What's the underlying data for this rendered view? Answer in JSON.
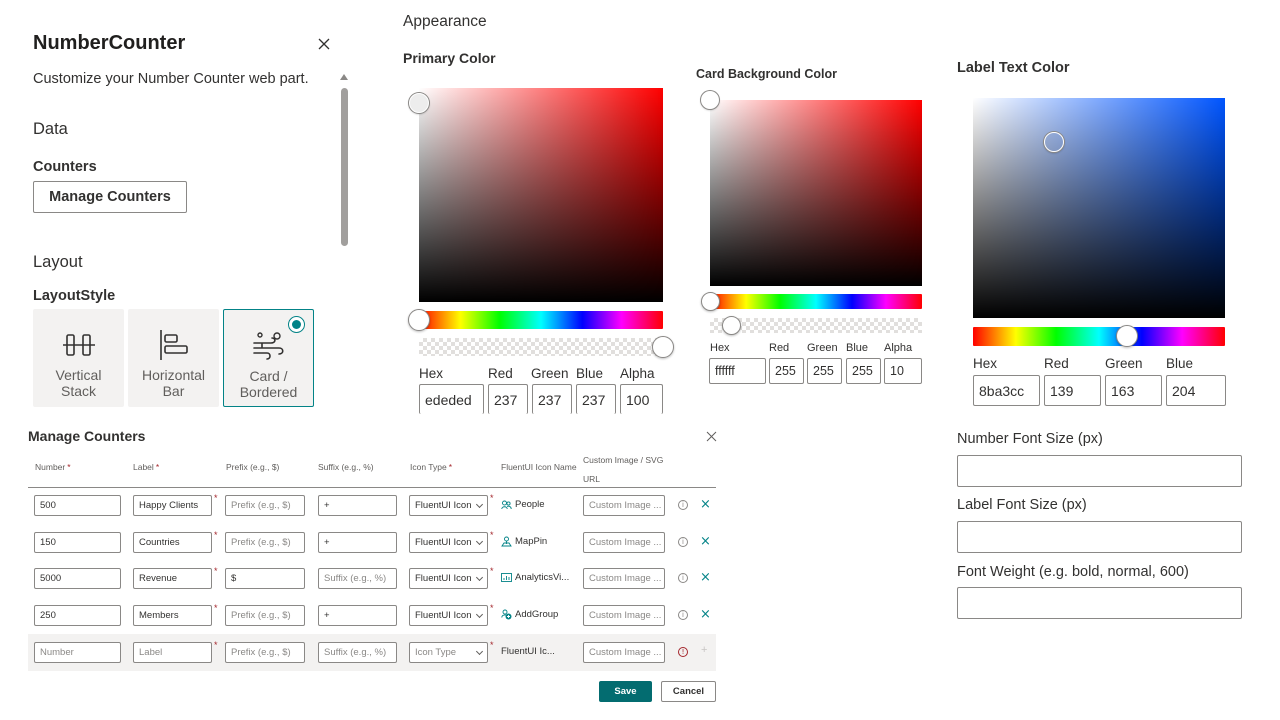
{
  "pane": {
    "title": "NumberCounter",
    "description": "Customize your Number Counter web part.",
    "data_group": "Data",
    "counters_label": "Counters",
    "manage_button": "Manage Counters",
    "layout_group": "Layout",
    "layout_style_label": "LayoutStyle",
    "layout_options": [
      {
        "line1": "Vertical",
        "line2": "Stack",
        "icon": "vertical-stack-icon",
        "selected": false
      },
      {
        "line1": "Horizontal",
        "line2": "Bar",
        "icon": "horizontal-bar-icon",
        "selected": false
      },
      {
        "line1": "Card /",
        "line2": "Bordered",
        "icon": "card-bordered-icon",
        "selected": true
      }
    ]
  },
  "appearance": {
    "heading": "Appearance",
    "primary": {
      "title": "Primary Color",
      "hue": "#ff0000",
      "labels": {
        "hex": "Hex",
        "red": "Red",
        "green": "Green",
        "blue": "Blue",
        "alpha": "Alpha"
      },
      "values": {
        "hex": "ededed",
        "red": "237",
        "green": "237",
        "blue": "237",
        "alpha": "100"
      }
    },
    "card_bg": {
      "title": "Card Background Color",
      "hue": "#ff0000",
      "labels": {
        "hex": "Hex",
        "red": "Red",
        "green": "Green",
        "blue": "Blue",
        "alpha": "Alpha"
      },
      "values": {
        "hex": "ffffff",
        "red": "255",
        "green": "255",
        "blue": "255",
        "alpha": "10"
      }
    },
    "label_text": {
      "title": "Label Text Color",
      "hue": "#0055ff",
      "labels": {
        "hex": "Hex",
        "red": "Red",
        "green": "Green",
        "blue": "Blue"
      },
      "values": {
        "hex": "8ba3cc",
        "red": "139",
        "green": "163",
        "blue": "204"
      }
    }
  },
  "fields": {
    "number_font_size": {
      "label": "Number Font Size (px)",
      "value": ""
    },
    "label_font_size": {
      "label": "Label Font Size (px)",
      "value": ""
    },
    "font_weight": {
      "label": "Font Weight (e.g. bold, normal, 600)",
      "value": ""
    }
  },
  "dialog": {
    "title": "Manage Counters",
    "columns": {
      "number": "Number",
      "label": "Label",
      "prefix": "Prefix (e.g., $)",
      "suffix": "Suffix (e.g., %)",
      "icon_type": "Icon Type",
      "icon_name": "FluentUI Icon Name",
      "custom_image_1": "Custom Image / SVG",
      "custom_image_2": "URL"
    },
    "rows": [
      {
        "number": "500",
        "label": "Happy Clients",
        "prefix": "Prefix (e.g., $)",
        "prefix_ph": true,
        "suffix": "+",
        "suffix_ph": false,
        "icon_type": "FluentUI Icon",
        "icon_glyph": "people-icon",
        "icon_name": "People",
        "custom": "Custom Image ..."
      },
      {
        "number": "150",
        "label": "Countries",
        "prefix": "Prefix (e.g., $)",
        "prefix_ph": true,
        "suffix": "+",
        "suffix_ph": false,
        "icon_type": "FluentUI Icon",
        "icon_glyph": "map-pin-icon",
        "icon_name": "MapPin",
        "custom": "Custom Image ..."
      },
      {
        "number": "5000",
        "label": "Revenue",
        "prefix": "$",
        "prefix_ph": false,
        "suffix": "Suffix (e.g., %)",
        "suffix_ph": true,
        "icon_type": "FluentUI Icon",
        "icon_glyph": "analytics-view-icon",
        "icon_name": "AnalyticsVi...",
        "custom": "Custom Image ..."
      },
      {
        "number": "250",
        "label": "Members",
        "prefix": "Prefix (e.g., $)",
        "prefix_ph": true,
        "suffix": "+",
        "suffix_ph": false,
        "icon_type": "FluentUI Icon",
        "icon_glyph": "add-group-icon",
        "icon_name": "AddGroup",
        "custom": "Custom Image ..."
      }
    ],
    "new_row": {
      "number": "Number",
      "label": "Label",
      "prefix": "Prefix (e.g., $)",
      "suffix": "Suffix (e.g., %)",
      "icon_type": "Icon Type",
      "icon_name": "FluentUI Ic...",
      "custom": "Custom Image ..."
    },
    "save": "Save",
    "cancel": "Cancel",
    "accent": "#036c70"
  }
}
